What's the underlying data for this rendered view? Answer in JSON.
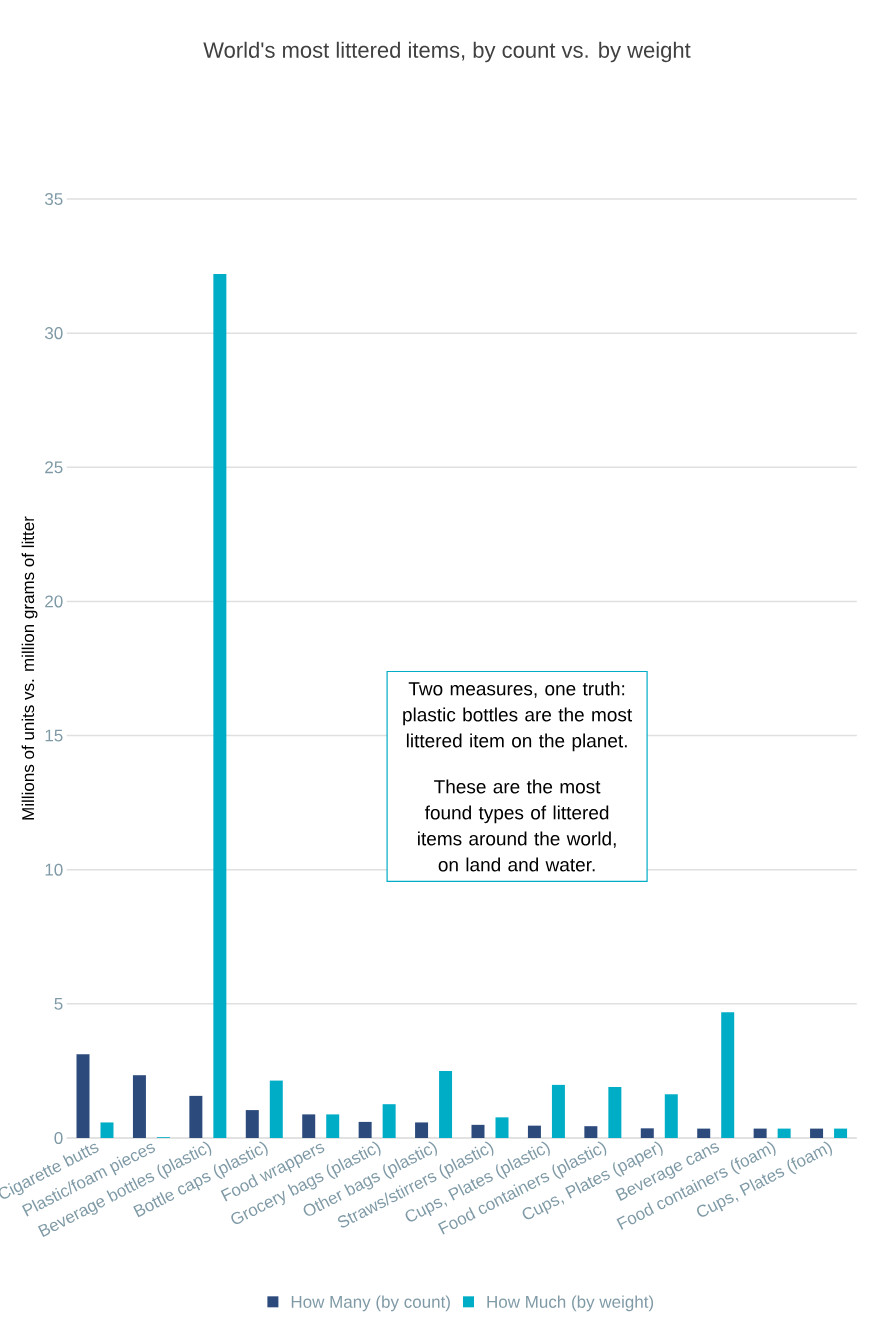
{
  "chart_data": {
    "type": "bar",
    "title": "World's most littered items, by count vs. by weight",
    "ylabel": "Millions of units vs. million grams of litter",
    "categories": [
      "Cigarette butts",
      "Plastic/foam pieces",
      "Beverage bottles (plastic)",
      "Bottle caps (plastic)",
      "Food wrappers",
      "Grocery bags (plastic)",
      "Other bags (plastic)",
      "Straws/stirrers (plastic)",
      "Cups, Plates (plastic)",
      "Food containers (plastic)",
      "Cups, Plates (paper)",
      "Beverage cans",
      "Food containers (foam)",
      "Cups, Plates (foam)"
    ],
    "series": [
      {
        "name": "How Many (by count)",
        "color": "#2c4a7c",
        "values": [
          3.12,
          2.34,
          1.57,
          1.04,
          0.88,
          0.6,
          0.58,
          0.49,
          0.46,
          0.44,
          0.36,
          0.35,
          0.35,
          0.35
        ]
      },
      {
        "name": "How Much (by weight)",
        "color": "#00adc6",
        "values": [
          0.58,
          0.03,
          32.2,
          2.14,
          0.88,
          1.26,
          2.5,
          0.77,
          1.98,
          1.9,
          1.63,
          4.69,
          0.35,
          0.35
        ]
      }
    ],
    "ylim": [
      0,
      35
    ],
    "yticks": [
      0,
      5,
      10,
      15,
      20,
      25,
      30,
      35
    ],
    "grid": "y",
    "legend": "bottom",
    "annotations": [
      "Two measures, one truth: plastic bottles are the most littered item on the planet.",
      "These are the most found types of littered items around the world, on land and water."
    ]
  }
}
